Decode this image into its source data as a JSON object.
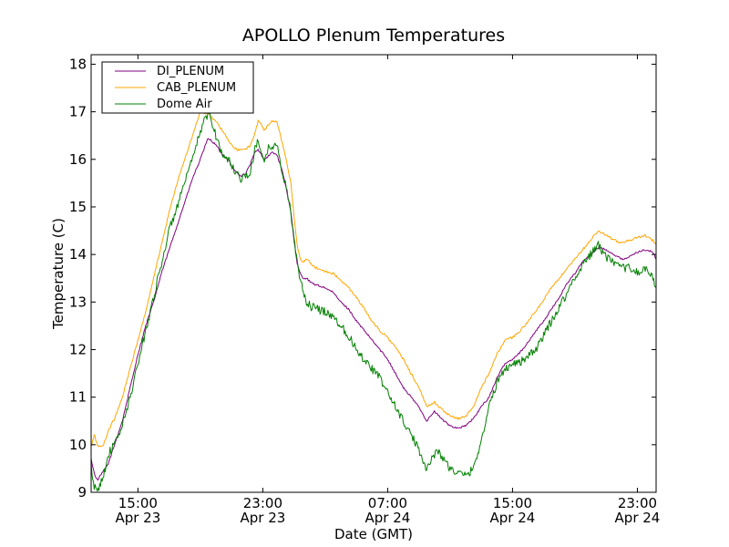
{
  "chart_data": {
    "type": "line",
    "title": "APOLLO Plenum Temperatures",
    "xlabel": "Date (GMT)",
    "ylabel": "Temperature (C)",
    "x_unit": "hours since Apr 23 00:00 GMT",
    "xlim": [
      12.0,
      48.2
    ],
    "ylim": [
      9,
      18.2
    ],
    "y_ticks": [
      9,
      10,
      11,
      12,
      13,
      14,
      15,
      16,
      17,
      18
    ],
    "x_ticks": [
      {
        "x": 15,
        "time": "15:00",
        "date": "Apr 23"
      },
      {
        "x": 23,
        "time": "23:00",
        "date": "Apr 23"
      },
      {
        "x": 31,
        "time": "07:00",
        "date": "Apr 24"
      },
      {
        "x": 39,
        "time": "15:00",
        "date": "Apr 24"
      },
      {
        "x": 47,
        "time": "23:00",
        "date": "Apr 24"
      }
    ],
    "grid": false,
    "legend": {
      "position": "top-left",
      "entries": [
        "DI_PLENUM",
        "CAB_PLENUM",
        "Dome Air"
      ]
    },
    "series": [
      {
        "name": "DI_PLENUM",
        "color": "#800080",
        "x": [
          12.0,
          12.2,
          12.4,
          12.6,
          12.8,
          13.1,
          13.5,
          14.0,
          14.5,
          15.0,
          15.5,
          16.0,
          16.5,
          17.0,
          17.5,
          18.0,
          18.5,
          19.0,
          19.5,
          20.0,
          20.4,
          20.8,
          21.1,
          21.4,
          21.6,
          21.9,
          22.2,
          22.5,
          22.7,
          22.9,
          23.1,
          23.3,
          23.6,
          23.9,
          24.2,
          24.5,
          24.8,
          25.0,
          25.2,
          25.4,
          25.6,
          25.8,
          26.1,
          26.5,
          27.0,
          27.5,
          28.0,
          28.5,
          29.0,
          29.5,
          30.0,
          30.5,
          31.0,
          31.5,
          32.0,
          32.5,
          33.0,
          33.5,
          34.0,
          34.3,
          34.6,
          35.0,
          35.5,
          36.0,
          36.5,
          37.0,
          37.5,
          38.0,
          38.5,
          39.0,
          39.5,
          40.0,
          40.5,
          41.0,
          41.5,
          42.0,
          42.5,
          43.0,
          43.5,
          44.0,
          44.5,
          45.0,
          45.5,
          46.0,
          46.5,
          47.0,
          47.5,
          48.0,
          48.2
        ],
        "y": [
          9.7,
          9.4,
          9.25,
          9.35,
          9.45,
          9.6,
          10.0,
          10.5,
          11.2,
          11.9,
          12.5,
          13.0,
          13.6,
          14.1,
          14.6,
          15.1,
          15.6,
          16.0,
          16.45,
          16.3,
          16.1,
          16.0,
          15.8,
          15.7,
          15.65,
          15.7,
          15.9,
          16.15,
          16.2,
          16.1,
          16.0,
          16.05,
          16.15,
          16.1,
          15.8,
          15.4,
          14.9,
          14.3,
          13.8,
          13.6,
          13.5,
          13.5,
          13.4,
          13.35,
          13.3,
          13.2,
          13.0,
          12.85,
          12.6,
          12.4,
          12.2,
          12.0,
          11.8,
          11.5,
          11.2,
          11.0,
          10.8,
          10.5,
          10.7,
          10.6,
          10.5,
          10.4,
          10.35,
          10.4,
          10.55,
          10.8,
          11.0,
          11.4,
          11.7,
          11.8,
          11.95,
          12.15,
          12.4,
          12.6,
          12.85,
          13.1,
          13.4,
          13.6,
          13.85,
          14.0,
          14.15,
          14.1,
          14.0,
          13.9,
          13.95,
          14.05,
          14.1,
          14.05,
          13.9
        ]
      },
      {
        "name": "CAB_PLENUM",
        "color": "#FFA500",
        "x": [
          12.0,
          12.2,
          12.4,
          12.6,
          12.8,
          13.1,
          13.5,
          14.0,
          14.5,
          15.0,
          15.5,
          16.0,
          16.5,
          17.0,
          17.5,
          18.0,
          18.5,
          19.0,
          19.5,
          20.0,
          20.4,
          20.8,
          21.1,
          21.4,
          21.6,
          21.9,
          22.2,
          22.5,
          22.7,
          22.9,
          23.1,
          23.3,
          23.6,
          23.9,
          24.2,
          24.5,
          24.8,
          25.0,
          25.2,
          25.4,
          25.6,
          25.8,
          26.1,
          26.5,
          27.0,
          27.5,
          28.0,
          28.5,
          29.0,
          29.5,
          30.0,
          30.5,
          31.0,
          31.5,
          32.0,
          32.5,
          33.0,
          33.5,
          34.0,
          34.3,
          34.6,
          35.0,
          35.5,
          36.0,
          36.5,
          37.0,
          37.5,
          38.0,
          38.5,
          39.0,
          39.5,
          40.0,
          40.5,
          41.0,
          41.5,
          42.0,
          42.5,
          43.0,
          43.5,
          44.0,
          44.5,
          45.0,
          45.5,
          46.0,
          46.5,
          47.0,
          47.5,
          48.0,
          48.2
        ],
        "y": [
          9.95,
          10.2,
          10.0,
          9.95,
          10.0,
          10.3,
          10.55,
          11.0,
          11.6,
          12.2,
          12.8,
          13.5,
          14.2,
          14.9,
          15.5,
          16.0,
          16.5,
          17.0,
          16.95,
          16.8,
          16.6,
          16.4,
          16.25,
          16.2,
          16.2,
          16.2,
          16.3,
          16.55,
          16.8,
          16.75,
          16.6,
          16.7,
          16.8,
          16.8,
          16.4,
          16.0,
          15.5,
          14.8,
          14.2,
          13.9,
          13.85,
          13.9,
          13.8,
          13.7,
          13.65,
          13.6,
          13.45,
          13.3,
          13.1,
          12.85,
          12.6,
          12.4,
          12.25,
          12.05,
          11.8,
          11.5,
          11.2,
          10.8,
          10.9,
          10.8,
          10.7,
          10.6,
          10.55,
          10.6,
          10.8,
          11.2,
          11.5,
          11.9,
          12.2,
          12.25,
          12.4,
          12.6,
          12.8,
          13.05,
          13.3,
          13.5,
          13.7,
          13.9,
          14.1,
          14.3,
          14.5,
          14.4,
          14.3,
          14.25,
          14.3,
          14.35,
          14.4,
          14.3,
          14.2
        ]
      },
      {
        "name": "Dome Air",
        "color": "#008000",
        "x": [
          12.0,
          12.1,
          12.3,
          12.5,
          12.7,
          12.9,
          13.1,
          13.5,
          14.0,
          14.5,
          15.0,
          15.5,
          16.0,
          16.5,
          17.0,
          17.5,
          18.0,
          18.5,
          19.0,
          19.3,
          19.6,
          20.0,
          20.4,
          20.8,
          21.1,
          21.4,
          21.6,
          21.9,
          22.2,
          22.5,
          22.7,
          22.9,
          23.1,
          23.3,
          23.6,
          23.9,
          24.2,
          24.5,
          24.8,
          25.0,
          25.2,
          25.4,
          25.6,
          25.8,
          26.1,
          26.5,
          27.0,
          27.5,
          28.0,
          28.5,
          29.0,
          29.5,
          30.0,
          30.5,
          31.0,
          31.5,
          32.0,
          32.5,
          33.0,
          33.5,
          34.0,
          34.3,
          34.6,
          35.0,
          35.5,
          36.0,
          36.5,
          37.0,
          37.5,
          38.0,
          38.5,
          39.0,
          39.5,
          40.0,
          40.5,
          41.0,
          41.5,
          42.0,
          42.5,
          43.0,
          43.5,
          44.0,
          44.5,
          45.0,
          45.5,
          46.0,
          46.5,
          47.0,
          47.5,
          48.0,
          48.2
        ],
        "y": [
          9.6,
          9.2,
          9.05,
          9.1,
          9.3,
          9.5,
          9.8,
          10.0,
          10.4,
          11.0,
          11.7,
          12.4,
          13.1,
          13.8,
          14.5,
          15.0,
          15.5,
          16.0,
          16.6,
          16.85,
          16.95,
          16.5,
          16.1,
          16.0,
          15.8,
          15.7,
          15.6,
          15.65,
          15.7,
          16.2,
          16.45,
          16.1,
          15.9,
          16.2,
          16.3,
          16.3,
          15.8,
          15.4,
          14.9,
          14.3,
          13.8,
          13.5,
          13.2,
          13.0,
          12.9,
          12.85,
          12.8,
          12.7,
          12.5,
          12.3,
          12.0,
          11.8,
          11.6,
          11.4,
          11.1,
          10.8,
          10.5,
          10.2,
          9.9,
          9.5,
          9.8,
          9.85,
          9.7,
          9.5,
          9.4,
          9.35,
          9.5,
          10.1,
          10.8,
          11.3,
          11.6,
          11.7,
          11.75,
          11.85,
          12.0,
          12.3,
          12.6,
          12.9,
          13.2,
          13.5,
          13.8,
          14.0,
          14.2,
          13.95,
          13.8,
          13.7,
          13.75,
          13.6,
          13.7,
          13.5,
          13.3
        ]
      }
    ]
  }
}
